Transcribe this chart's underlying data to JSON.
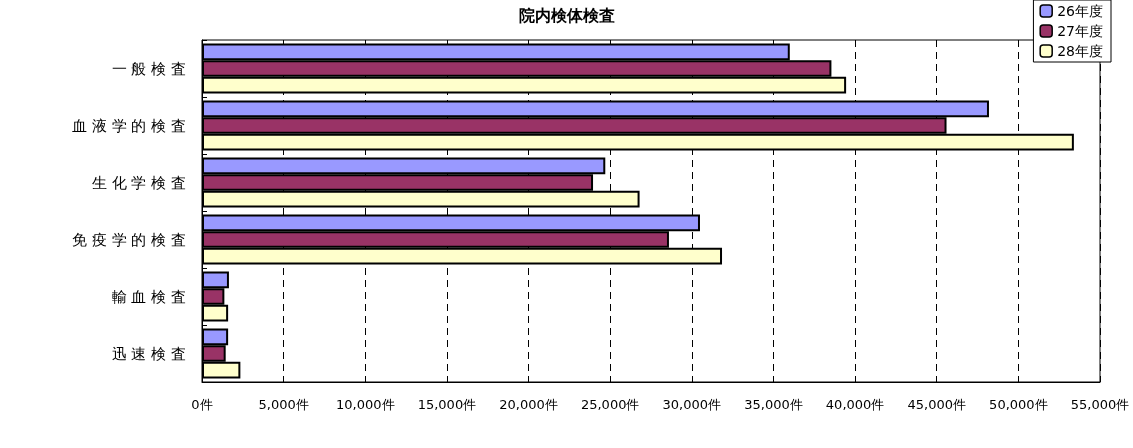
{
  "chart_data": {
    "type": "bar",
    "title": "院内検体検査",
    "orientation": "horizontal",
    "categories": [
      "一 般 検 査",
      "血 液 学 的 検 査",
      "生 化 学 検 査",
      "免 疫 学 的 検 査",
      "輸 血 検 査",
      "迅 速 検 査"
    ],
    "series": [
      {
        "name": "26年度",
        "color": "#9999ff",
        "values": [
          36000,
          48200,
          24700,
          30500,
          1650,
          1600
        ]
      },
      {
        "name": "27年度",
        "color": "#993366",
        "values": [
          38550,
          45600,
          23950,
          28600,
          1370,
          1450
        ]
      },
      {
        "name": "28年度",
        "color": "#ffffcc",
        "values": [
          39450,
          53400,
          26800,
          31850,
          1600,
          2350
        ]
      }
    ],
    "xlim": [
      0,
      55000
    ],
    "xticks": [
      {
        "value": 0,
        "label": "0件"
      },
      {
        "value": 5000,
        "label": "5,000件"
      },
      {
        "value": 10000,
        "label": "10,000件"
      },
      {
        "value": 15000,
        "label": "15,000件"
      },
      {
        "value": 20000,
        "label": "20,000件"
      },
      {
        "value": 25000,
        "label": "25,000件"
      },
      {
        "value": 30000,
        "label": "30,000件"
      },
      {
        "value": 35000,
        "label": "35,000件"
      },
      {
        "value": 40000,
        "label": "40,000件"
      },
      {
        "value": 45000,
        "label": "45,000件"
      },
      {
        "value": 50000,
        "label": "50,000件"
      },
      {
        "value": 55000,
        "label": "55,000件"
      }
    ],
    "grid": "x",
    "legend": "top right"
  }
}
